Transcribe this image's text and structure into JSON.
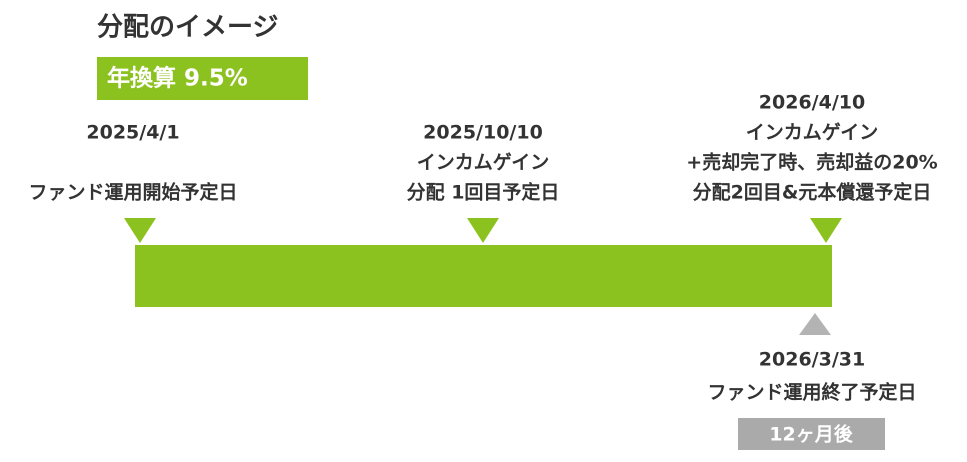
{
  "title": "分配のイメージ",
  "badge": "年換算 9.5%",
  "milestones": [
    {
      "lines": [
        "2025/4/1",
        "ファンド運用開始予定日"
      ]
    },
    {
      "lines": [
        "2025/10/10",
        "インカムゲイン",
        "分配 1回目予定日"
      ]
    },
    {
      "lines": [
        "2026/4/10",
        "インカムゲイン",
        "+売却完了時、売却益の20%",
        "分配2回目&元本償還予定日"
      ]
    }
  ],
  "end": {
    "lines": [
      "2026/3/31",
      "ファンド運用終了予定日"
    ]
  },
  "duration": "12ヶ月後"
}
